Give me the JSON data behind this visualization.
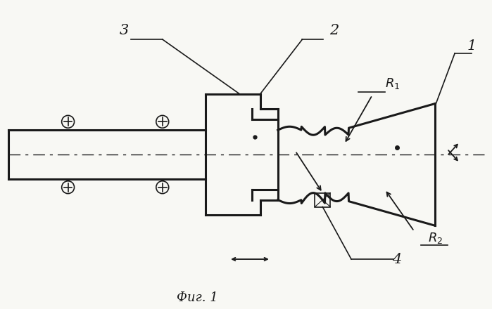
{
  "bg_color": "#f8f8f4",
  "line_color": "#1a1a1a",
  "lw_thick": 2.2,
  "lw_thin": 1.2,
  "fig_caption": "Фиг. 1"
}
